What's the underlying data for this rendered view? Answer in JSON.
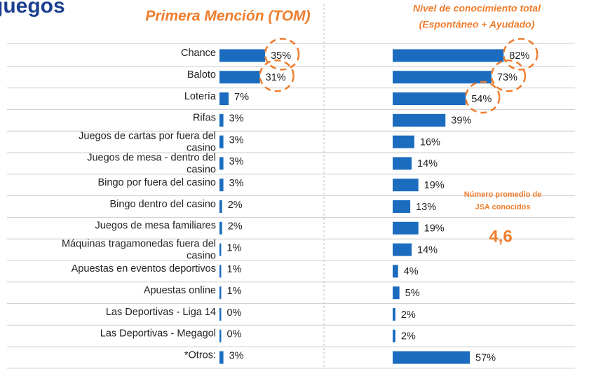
{
  "logo": "juegos",
  "chart_data": [
    {
      "type": "bar",
      "orientation": "horizontal",
      "title": "Primera Mención (TOM)",
      "color": "#1b6cbf",
      "categories": [
        "Chance",
        "Baloto",
        "Lotería",
        "Rifas",
        "Juegos de cartas por fuera del casino",
        "Juegos de mesa - dentro del casino",
        "Bingo por fuera del casino",
        "Bingo dentro del casino",
        "Juegos de mesa familiares",
        "Máquinas tragamonedas fuera del casino",
        "Apuestas en eventos deportivos",
        "Apuestas online",
        "Las Deportivas - Liga 14",
        "Las Deportivas - Megagol",
        "*Otros:"
      ],
      "values": [
        35,
        31,
        7,
        3,
        3,
        3,
        3,
        2,
        2,
        1,
        1,
        1,
        0,
        0,
        3
      ],
      "value_labels": [
        "35%",
        "31%",
        "7%",
        "3%",
        "3%",
        "3%",
        "3%",
        "2%",
        "2%",
        "1%",
        "1%",
        "1%",
        "0%",
        "0%",
        "3%"
      ]
    },
    {
      "type": "bar",
      "orientation": "horizontal",
      "title": "Nivel de conocimiento total",
      "subtitle": "(Espontáneo + Ayudado)",
      "color": "#1b6cbf",
      "values": [
        82,
        73,
        54,
        39,
        16,
        14,
        19,
        13,
        19,
        14,
        4,
        5,
        2,
        2,
        57
      ],
      "value_labels": [
        "82%",
        "73%",
        "54%",
        "39%",
        "16%",
        "14%",
        "19%",
        "13%",
        "19%",
        "14%",
        "4%",
        "5%",
        "2%",
        "2%",
        "57%"
      ],
      "annotation": "Número promedio de JSA conocidos",
      "annotation_value": "4,6"
    }
  ]
}
